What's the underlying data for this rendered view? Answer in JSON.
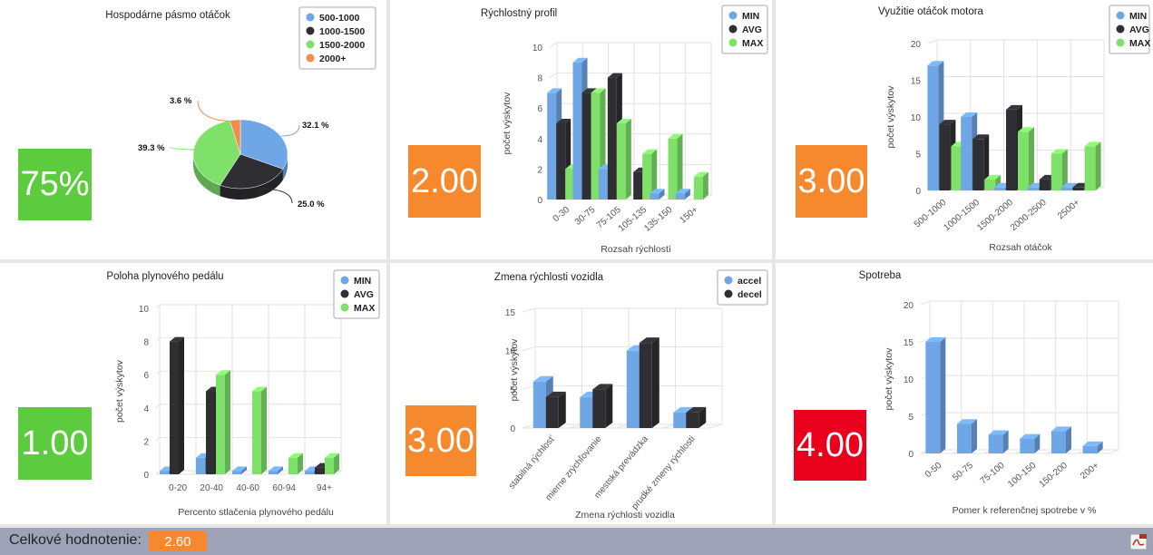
{
  "colors": {
    "green": "#5ccb3e",
    "orange": "#f6892e",
    "red": "#e8001c",
    "min": "#6fa6e6",
    "avg": "#2f2f33",
    "max": "#7fe06a",
    "pie_orange": "#f08c4e"
  },
  "panels": [
    {
      "id": "p1",
      "score": "75%",
      "score_color": "green",
      "chart_data": {
        "type": "pie",
        "title": "Hospodárne pásmo otáčok",
        "legend_position": "top-right",
        "slices": [
          {
            "name": "500-1000",
            "value": 32.1,
            "label": "32.1 %",
            "color": "min"
          },
          {
            "name": "1000-1500",
            "value": 25.0,
            "label": "25.0 %",
            "color": "avg"
          },
          {
            "name": "1500-2000",
            "value": 39.3,
            "label": "39.3 %",
            "color": "max"
          },
          {
            "name": "2000+",
            "value": 3.6,
            "label": "3.6 %",
            "color": "pie_orange"
          }
        ]
      }
    },
    {
      "id": "p2",
      "score": "2.00",
      "score_color": "orange",
      "chart_data": {
        "type": "bar",
        "title": "Rýchlostný profil",
        "xlabel": "Rozsah rýchlostí",
        "ylabel": "počet výskytov",
        "ylim": [
          0,
          10
        ],
        "yticks": [
          0,
          2,
          4,
          6,
          8,
          10
        ],
        "grid": true,
        "legend_position": "top-right",
        "categories": [
          "0-30",
          "30-75",
          "75-105",
          "105-135",
          "135-150",
          "150+"
        ],
        "series": [
          {
            "name": "MIN",
            "color": "min",
            "values": [
              7,
              9,
              2,
              0,
              0.4,
              0.4
            ]
          },
          {
            "name": "AVG",
            "color": "avg",
            "values": [
              5,
              7,
              8,
              1.8,
              0,
              0
            ]
          },
          {
            "name": "MAX",
            "color": "max",
            "values": [
              2,
              7,
              5,
              3,
              4,
              1.5
            ]
          }
        ]
      }
    },
    {
      "id": "p3",
      "score": "3.00",
      "score_color": "orange",
      "chart_data": {
        "type": "bar",
        "title": "Využitie otáčok motora",
        "xlabel": "Rozsah otáčok",
        "ylabel": "počet výskytov",
        "ylim": [
          0,
          20
        ],
        "yticks": [
          0,
          5,
          10,
          15,
          20
        ],
        "grid": true,
        "legend_position": "top-right",
        "categories": [
          "500-1000",
          "1000-1500",
          "1500-2000",
          "2000-2500",
          "2500+"
        ],
        "series": [
          {
            "name": "MIN",
            "color": "min",
            "values": [
              17,
              10,
              0.4,
              0.4,
              0.4
            ]
          },
          {
            "name": "AVG",
            "color": "avg",
            "values": [
              9,
              7,
              11,
              1.5,
              0.4
            ]
          },
          {
            "name": "MAX",
            "color": "max",
            "values": [
              6,
              1.5,
              8,
              5,
              6
            ]
          }
        ]
      }
    },
    {
      "id": "p4",
      "score": "1.00",
      "score_color": "green",
      "chart_data": {
        "type": "bar",
        "title": "Poloha plynového pedálu",
        "xlabel": "Percento stlačenia plynového pedálu",
        "ylabel": "počet výskytov",
        "ylim": [
          0,
          10
        ],
        "yticks": [
          0,
          2,
          4,
          6,
          8,
          10
        ],
        "grid": true,
        "legend_position": "top-right",
        "categories": [
          "0-20",
          "20-40",
          "40-60",
          "60-94",
          "94+"
        ],
        "series": [
          {
            "name": "MIN",
            "color": "min",
            "values": [
              0.2,
              1,
              0.2,
              0.2,
              0.2
            ]
          },
          {
            "name": "AVG",
            "color": "avg",
            "values": [
              8,
              5,
              0,
              0,
              0.4
            ]
          },
          {
            "name": "MAX",
            "color": "max",
            "values": [
              0,
              6,
              5,
              1,
              1
            ]
          }
        ]
      }
    },
    {
      "id": "p5",
      "score": "3.00",
      "score_color": "orange",
      "chart_data": {
        "type": "bar",
        "title": "Zmena rýchlosti vozidla",
        "xlabel": "Zmena rýchlosti vozidla",
        "ylabel": "počet výskytov",
        "ylim": [
          0,
          15
        ],
        "yticks": [
          0,
          5,
          10,
          15
        ],
        "grid": true,
        "legend_position": "top-right",
        "categories": [
          "stabilná rýchlosť",
          "mierne zrýchľovanie",
          "mestská prevádzka",
          "prudké zmeny rýchlosti"
        ],
        "series": [
          {
            "name": "accel",
            "color": "min",
            "values": [
              6,
              4,
              10,
              2
            ]
          },
          {
            "name": "decel",
            "color": "avg",
            "values": [
              4,
              5,
              11,
              2
            ]
          }
        ]
      }
    },
    {
      "id": "p6",
      "score": "4.00",
      "score_color": "red",
      "chart_data": {
        "type": "bar",
        "title": "Spotreba",
        "xlabel": "Pomer k referenčnej spotrebe v %",
        "ylabel": "počet výskytov",
        "ylim": [
          0,
          20
        ],
        "yticks": [
          0,
          5,
          10,
          15,
          20
        ],
        "grid": true,
        "categories": [
          "0-50",
          "50-75",
          "75-100",
          "100-150",
          "150-200",
          "200+"
        ],
        "series": [
          {
            "color": "min",
            "values": [
              15,
              4,
              2.5,
              2,
              3,
              1
            ]
          }
        ]
      }
    }
  ],
  "footer": {
    "label": "Celkové hodnotenie:",
    "value": "2.60",
    "pdf_icon": "pdf-icon"
  }
}
